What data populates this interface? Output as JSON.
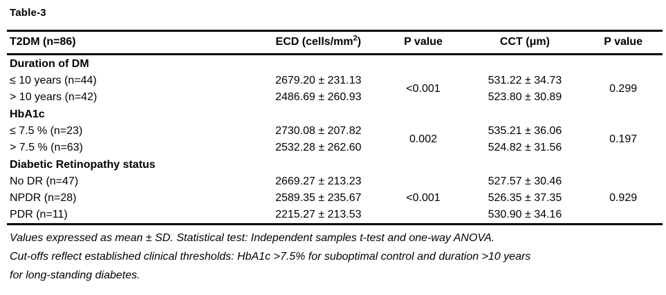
{
  "title": "Table-3",
  "table": {
    "columns": {
      "c1": "T2DM (n=86)",
      "c2_pre": "ECD (cells/mm",
      "c2_sup": "2",
      "c2_post": ")",
      "c3": "P value",
      "c4": "CCT (μm)",
      "c5": "P value"
    },
    "sections": [
      {
        "name": "Duration of DM",
        "rows": [
          {
            "label": "≤ 10 years (n=44)",
            "ecd": "2679.20 ± 231.13",
            "cct": "531.22 ± 34.73"
          },
          {
            "label": "> 10 years (n=42)",
            "ecd": "2486.69 ± 260.93",
            "cct": "523.80 ± 30.89"
          }
        ],
        "p_ecd": "<0.001",
        "p_cct": "0.299"
      },
      {
        "name": "HbA1c",
        "rows": [
          {
            "label": "≤ 7.5 % (n=23)",
            "ecd": "2730.08 ± 207.82",
            "cct": "535.21 ± 36.06"
          },
          {
            "label": "> 7.5 % (n=63)",
            "ecd": "2532.28 ± 262.60",
            "cct": "524.82 ± 31.56"
          }
        ],
        "p_ecd": "0.002",
        "p_cct": "0.197"
      },
      {
        "name": "Diabetic Retinopathy status",
        "rows": [
          {
            "label": "No DR (n=47)",
            "ecd": "2669.27 ± 213.23",
            "cct": "527.57 ± 30.46"
          },
          {
            "label": "NPDR (n=28)",
            "ecd": "2589.35 ± 235.67",
            "cct": "526.35 ± 37.35"
          },
          {
            "label": "PDR (n=11)",
            "ecd": "2215.27 ± 213.53",
            "cct": "530.90 ± 34.16"
          }
        ],
        "p_ecd": "<0.001",
        "p_cct": "0.929"
      }
    ]
  },
  "notes": {
    "line1": "Values expressed as mean ± SD. Statistical test: Independent samples t-test and one-way ANOVA.",
    "line2": "Cut-offs reflect established clinical thresholds: HbA1c >7.5% for suboptimal control and duration >10 years",
    "line3": "for long-standing diabetes."
  }
}
